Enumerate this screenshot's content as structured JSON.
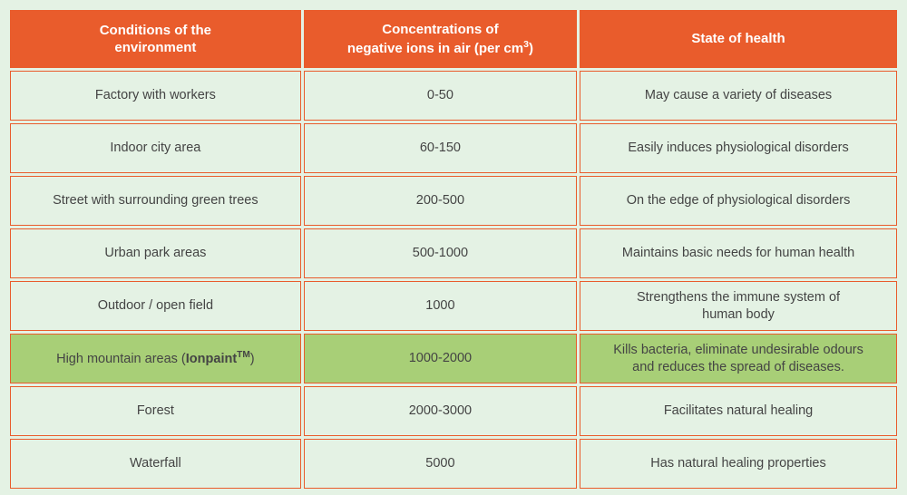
{
  "table": {
    "header_bg": "#e95c2c",
    "header_color": "#ffffff",
    "cell_bg": "#e4f2e4",
    "cell_border": "#e95c2c",
    "cell_text": "#444444",
    "highlight_bg": "#a8cf77",
    "page_bg": "#e4f2e4",
    "columns": [
      {
        "label_html": "Conditions of the<br>environment"
      },
      {
        "label_html": "Concentrations of<br>negative ions in air (per cm<sup>3</sup>)"
      },
      {
        "label_html": "State of health"
      }
    ],
    "rows": [
      {
        "highlight": false,
        "cells": [
          "Factory with workers",
          "0-50",
          "May cause a variety of diseases"
        ]
      },
      {
        "highlight": false,
        "cells": [
          "Indoor city area",
          "60-150",
          "Easily induces physiological disorders"
        ]
      },
      {
        "highlight": false,
        "cells": [
          "Street with surrounding green trees",
          "200-500",
          "On the edge of physiological disorders"
        ]
      },
      {
        "highlight": false,
        "cells": [
          "Urban park areas",
          "500-1000",
          "Maintains basic needs for human health"
        ]
      },
      {
        "highlight": false,
        "cells": [
          "Outdoor / open field",
          "1000",
          "Strengthens the immune system of<br>human body"
        ]
      },
      {
        "highlight": true,
        "cells": [
          "High mountain areas (<span class=\"brand\">Ionpaint<span class=\"tm\">TM</span></span>)",
          "1000-2000",
          "Kills bacteria, eliminate undesirable odours<br>and reduces the spread of diseases."
        ]
      },
      {
        "highlight": false,
        "cells": [
          "Forest",
          "2000-3000",
          "Facilitates natural healing"
        ]
      },
      {
        "highlight": false,
        "cells": [
          "Waterfall",
          "5000",
          "Has natural healing properties"
        ]
      }
    ]
  }
}
